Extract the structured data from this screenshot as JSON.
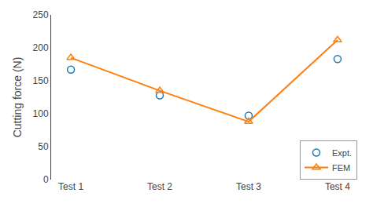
{
  "chart_data": {
    "type": "line",
    "categories": [
      "Test 1",
      "Test 2",
      "Test 3",
      "Test 4"
    ],
    "series": [
      {
        "name": "Expt.",
        "type": "scatter",
        "marker": "circle",
        "values": [
          167,
          128,
          97,
          183
        ]
      },
      {
        "name": "FEM",
        "type": "line",
        "marker": "triangle",
        "values": [
          185,
          135,
          88,
          212
        ]
      }
    ],
    "y_label": "Cutting force (N)",
    "ylim": [
      0,
      250
    ],
    "yticks": [
      0,
      50,
      100,
      150,
      200,
      250
    ],
    "grid": false,
    "legend": "lower right"
  }
}
